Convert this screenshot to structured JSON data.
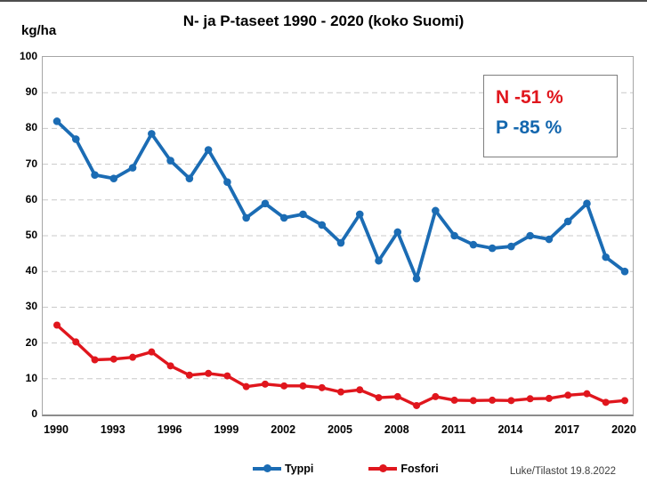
{
  "page": {
    "title": "N- ja P-taseet 1990 - 2020 (koko Suomi)",
    "y_unit_label": "kg/ha",
    "footer": "Luke/Tilastot 19.8.2022"
  },
  "annotation": {
    "n_change": "N -51 %",
    "p_change": "P -85 %",
    "n_color": "#e0161d",
    "p_color": "#1467ae"
  },
  "chart_data": {
    "type": "line",
    "title": "N- ja P-taseet 1990 - 2020 (koko Suomi)",
    "xlabel": "",
    "ylabel": "kg/ha",
    "ylim": [
      0,
      100
    ],
    "y_tick_step": 10,
    "grid": "horizontal-dashed",
    "gridline_color": "#c8c8c8",
    "plot_border_color": "#a6a6a6",
    "legend_position": "bottom",
    "x": [
      1990,
      1991,
      1992,
      1993,
      1994,
      1995,
      1996,
      1997,
      1998,
      1999,
      2000,
      2001,
      2002,
      2003,
      2004,
      2005,
      2006,
      2007,
      2008,
      2009,
      2010,
      2011,
      2012,
      2013,
      2014,
      2015,
      2016,
      2017,
      2018,
      2019,
      2020
    ],
    "x_tick_labels": [
      "1990",
      "1993",
      "1996",
      "1999",
      "2002",
      "2005",
      "2008",
      "2011",
      "2014",
      "2017",
      "2020"
    ],
    "y_tick_labels": [
      "0",
      "10",
      "20",
      "30",
      "40",
      "50",
      "60",
      "70",
      "80",
      "90",
      "100"
    ],
    "series": [
      {
        "name": "Typpi",
        "color": "#1b6cb4",
        "values": [
          82,
          77,
          67,
          66,
          69,
          78.5,
          71,
          66,
          74,
          65,
          55,
          59,
          55,
          56,
          53,
          48,
          56,
          43,
          51,
          38,
          57,
          50,
          47.5,
          46.5,
          47,
          50,
          49,
          54,
          59,
          44,
          40
        ]
      },
      {
        "name": "Fosfori",
        "color": "#e0161d",
        "values": [
          25,
          20.3,
          15.3,
          15.5,
          16,
          17.5,
          13.6,
          11,
          11.5,
          10.8,
          7.8,
          8.5,
          8,
          8,
          7.5,
          6.3,
          6.9,
          4.7,
          5,
          2.5,
          5,
          4,
          3.9,
          4,
          3.9,
          4.4,
          4.5,
          5.4,
          5.8,
          3.4,
          3.9
        ]
      }
    ]
  }
}
